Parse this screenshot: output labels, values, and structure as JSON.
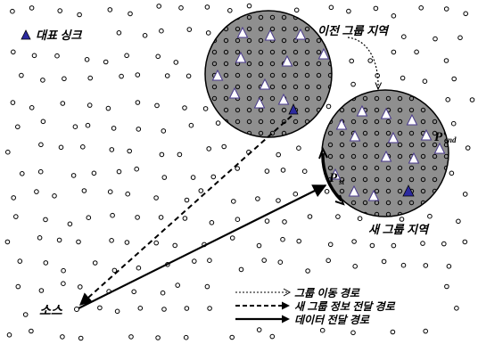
{
  "legend": {
    "rep_sink_label": "대표 싱크"
  },
  "regions": {
    "old_group": "이전 그룹 지역",
    "new_group": "새 그룹 지역"
  },
  "points": {
    "source": "소스",
    "p_end_main": "P",
    "p_end_sub": "end",
    "p_st_main": "P",
    "p_st_sub": "st"
  },
  "path_legend": {
    "group_move": "그룹 이동 경로",
    "new_group_info": "새 그룹 정보 전달 경로",
    "data_delivery": "데이터 전달 경로"
  },
  "colors": {
    "region_fill": "#8f8f8f",
    "sink_fill": "#2c2aa0",
    "triangle_fill": "#ffffff",
    "ink": "#000000"
  }
}
